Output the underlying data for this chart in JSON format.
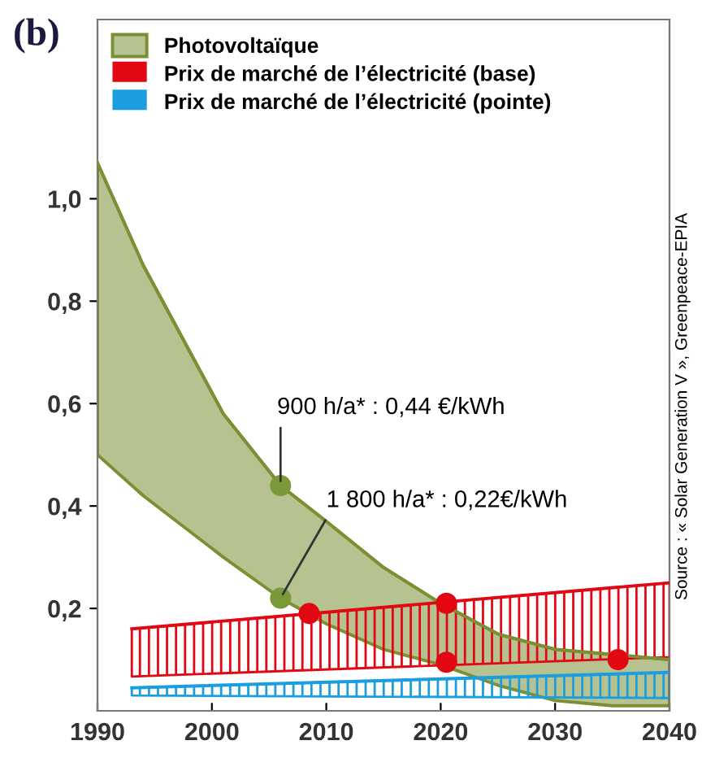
{
  "chart_data": {
    "type": "line",
    "title": "(b)",
    "series": [
      {
        "name": "Photovoltaïque",
        "color": "#7a9033",
        "x": [
          1990,
          1994,
          2001,
          2006,
          2010,
          2015,
          2020,
          2025,
          2030,
          2035,
          2040
        ],
        "values": [
          1.07,
          0.87,
          0.58,
          0.44,
          0.37,
          0.28,
          0.21,
          0.15,
          0.12,
          0.11,
          0.1
        ],
        "upper": [
          1.07,
          0.87,
          0.58,
          0.44,
          0.37,
          0.28,
          0.21,
          0.15,
          0.12,
          0.11,
          0.1
        ],
        "lower": [
          0.5,
          0.42,
          0.3,
          0.22,
          0.17,
          0.12,
          0.09,
          0.05,
          0.02,
          0.01,
          0.01
        ]
      },
      {
        "name": "Prix de marché de l’électricité (base)",
        "color": "#e30613",
        "x": [
          1993,
          2040
        ],
        "values": [
          0.16,
          0.25
        ],
        "upper": [
          0.16,
          0.25
        ],
        "lower": [
          0.067,
          0.105
        ]
      },
      {
        "name": "Prix de marché de l’électricité (pointe)",
        "color": "#1a9ee0",
        "x": [
          1993,
          2040
        ],
        "values": [
          0.045,
          0.075
        ],
        "upper": [
          0.045,
          0.075
        ],
        "lower": [
          0.03,
          0.025
        ]
      },
      {
        "type": "scatter",
        "marker": "circle",
        "color": "#7a9a3a",
        "x": [
          2006,
          2006
        ],
        "values": [
          0.44,
          0.22
        ]
      },
      {
        "type": "scatter",
        "marker": "circle",
        "color": "#e30613",
        "x": [
          2008.5,
          2020.5,
          2020.5,
          2035.5
        ],
        "values": [
          0.19,
          0.21,
          0.095,
          0.1
        ]
      }
    ],
    "annotations": [
      {
        "text": "900 h/a* : 0,44 €/kWh",
        "x": 2006,
        "y": 0.44
      },
      {
        "text": "1 800 h/a* : 0,22€/kWh",
        "x": 2006,
        "y": 0.22
      },
      "Source : « Solar Generation V », Greenpeace-EPIA"
    ],
    "xlim": [
      1990,
      2040
    ],
    "xticks": [
      1990,
      2000,
      2010,
      2020,
      2030,
      2040
    ],
    "ylim": [
      0,
      1.35
    ],
    "yticks": [
      {
        "value": 0.2,
        "label": "0,2"
      },
      {
        "value": 0.4,
        "label": "0,4"
      },
      {
        "value": 0.6,
        "label": "0,6"
      },
      {
        "value": 0.8,
        "label": "0,8"
      },
      {
        "value": 1.0,
        "label": "1,0"
      }
    ],
    "legend": "top left",
    "grid": false
  }
}
